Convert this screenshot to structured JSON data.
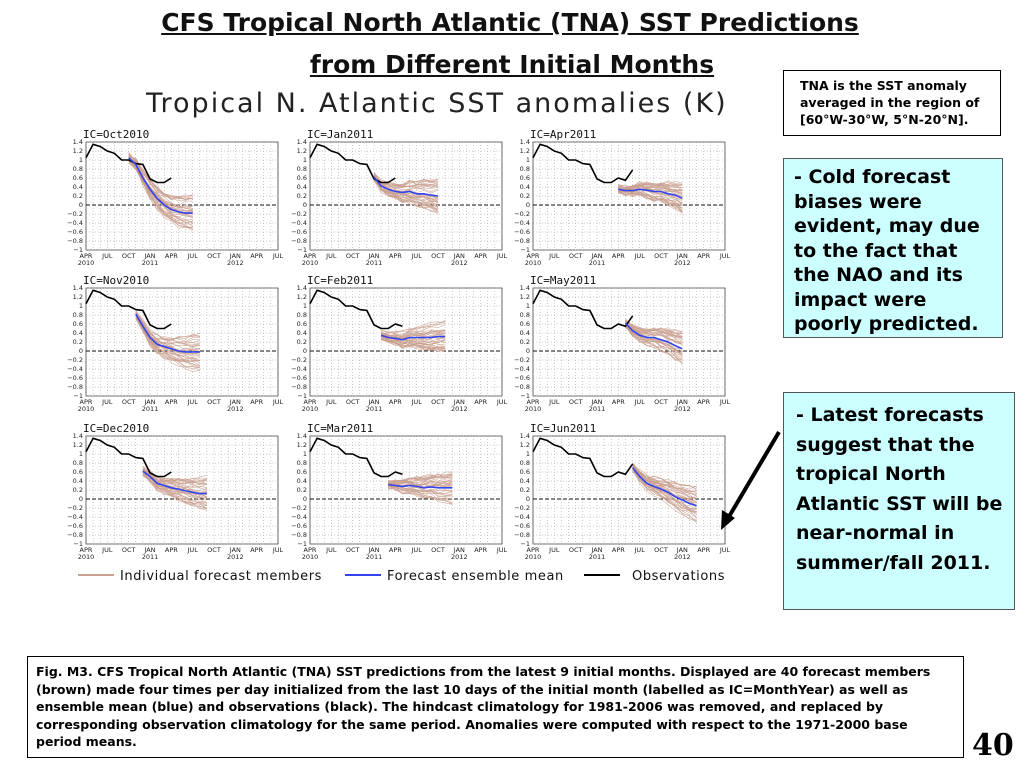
{
  "header": {
    "title_line1": "CFS Tropical North Atlantic (TNA) SST Predictions",
    "title_line2": "from Different Initial Months"
  },
  "callout": {
    "line1": "TNA is the SST anomaly",
    "line2": "averaged in the region of",
    "line3": "[60°W-30°W, 5°N-20°N]."
  },
  "notes": {
    "cold_bias": "- Cold forecast biases were evident, may due to the fact that the NAO and its impact were poorly predicted.",
    "latest": "- Latest forecasts suggest that the tropical North Atlantic SST will be near-normal in summer/fall 2011."
  },
  "caption": "Fig. M3. CFS Tropical North Atlantic (TNA) SST predictions from the latest 9 initial months. Displayed are 40 forecast members (brown) made four times per day initialized from the last 10 days of the initial month (labelled as IC=MonthYear) as well as ensemble mean (blue) and observations (black). The hindcast climatology for 1981-2006 was removed, and replaced by corresponding observation climatology for the same period. Anomalies were computed with respect to the 1971-2000 base period means.",
  "page_number": "40",
  "colors": {
    "members": "#c9a08f",
    "ensemble_mean": "#3344ee",
    "observations": "#000000",
    "note_bg": "#ccffff"
  },
  "chart_data": {
    "type": "line",
    "title": "Tropical N. Atlantic SST anomalies (K)",
    "ylim": [
      -1,
      1.4
    ],
    "yticks": [
      "1.4",
      "1.2",
      "1",
      "0.8",
      "0.6",
      "0.4",
      "0.2",
      "0",
      "−0.2",
      "−0.4",
      "−0.6",
      "−0.8",
      "−1"
    ],
    "xlim": [
      0,
      27
    ],
    "xtick_labels": [
      "APR",
      "JUL",
      "OCT",
      "JAN",
      "APR",
      "JUL",
      "OCT",
      "JAN",
      "APR",
      "JUL"
    ],
    "xtick_positions": [
      0,
      3,
      6,
      9,
      12,
      15,
      18,
      21,
      24,
      27
    ],
    "year_labels": [
      {
        "at": 0,
        "text": "2010"
      },
      {
        "at": 9,
        "text": "2011"
      },
      {
        "at": 21,
        "text": "2012"
      }
    ],
    "grid": true,
    "legend": {
      "placement": "bottom",
      "items": [
        "Individual forecast members",
        "Forecast ensemble mean",
        "Observations"
      ]
    },
    "observations": {
      "x": [
        0,
        1,
        2,
        3,
        4,
        5,
        6,
        7,
        8,
        9,
        10,
        11,
        12,
        13,
        14
      ],
      "y": [
        1.05,
        1.35,
        1.3,
        1.2,
        1.15,
        1.0,
        1.0,
        0.92,
        0.9,
        0.58,
        0.5,
        0.5,
        0.6,
        0.55,
        0.78
      ]
    },
    "panels": [
      {
        "ic": "IC=Oct2010",
        "obs_end": 12,
        "mean": {
          "x": [
            6,
            7,
            8,
            9,
            10,
            11,
            12,
            13,
            14,
            15
          ],
          "y": [
            1.05,
            0.9,
            0.6,
            0.35,
            0.15,
            0.0,
            -0.1,
            -0.15,
            -0.18,
            -0.18
          ]
        },
        "spread": 0.35
      },
      {
        "ic": "IC=Jan2011",
        "obs_end": 12,
        "mean": {
          "x": [
            9,
            10,
            11,
            12,
            13,
            14,
            15,
            16,
            17,
            18
          ],
          "y": [
            0.62,
            0.42,
            0.35,
            0.3,
            0.28,
            0.3,
            0.25,
            0.25,
            0.22,
            0.2
          ]
        },
        "spread": 0.3
      },
      {
        "ic": "IC=Apr2011",
        "obs_end": 14,
        "mean": {
          "x": [
            12,
            13,
            14,
            15,
            16,
            17,
            18,
            19,
            20,
            21
          ],
          "y": [
            0.35,
            0.32,
            0.32,
            0.35,
            0.33,
            0.3,
            0.3,
            0.25,
            0.22,
            0.15
          ]
        },
        "spread": 0.25
      },
      {
        "ic": "IC=Nov2010",
        "obs_end": 12,
        "mean": {
          "x": [
            7,
            8,
            9,
            10,
            11,
            12,
            13,
            14,
            15,
            16
          ],
          "y": [
            0.82,
            0.55,
            0.3,
            0.15,
            0.1,
            0.05,
            0.0,
            -0.02,
            -0.02,
            -0.02
          ]
        },
        "spread": 0.35
      },
      {
        "ic": "IC=Feb2011",
        "obs_end": 13,
        "mean": {
          "x": [
            10,
            11,
            12,
            13,
            14,
            15,
            16,
            17,
            18,
            19
          ],
          "y": [
            0.35,
            0.3,
            0.28,
            0.25,
            0.3,
            0.3,
            0.3,
            0.3,
            0.32,
            0.32
          ]
        },
        "spread": 0.3
      },
      {
        "ic": "IC=May2011",
        "obs_end": 14,
        "mean": {
          "x": [
            13,
            14,
            15,
            16,
            17,
            18,
            19,
            20,
            21
          ],
          "y": [
            0.62,
            0.45,
            0.35,
            0.3,
            0.3,
            0.25,
            0.2,
            0.12,
            0.05
          ]
        },
        "spread": 0.3
      },
      {
        "ic": "IC=Dec2010",
        "obs_end": 12,
        "mean": {
          "x": [
            8,
            9,
            10,
            11,
            12,
            13,
            14,
            15,
            16,
            17
          ],
          "y": [
            0.62,
            0.5,
            0.35,
            0.3,
            0.25,
            0.22,
            0.18,
            0.15,
            0.12,
            0.12
          ]
        },
        "spread": 0.3
      },
      {
        "ic": "IC=Mar2011",
        "obs_end": 13,
        "mean": {
          "x": [
            11,
            12,
            13,
            14,
            15,
            16,
            17,
            18,
            19,
            20
          ],
          "y": [
            0.32,
            0.3,
            0.28,
            0.3,
            0.28,
            0.25,
            0.27,
            0.25,
            0.25,
            0.25
          ]
        },
        "spread": 0.3
      },
      {
        "ic": "IC=Jun2011",
        "obs_end": 14,
        "mean": {
          "x": [
            14,
            15,
            16,
            17,
            18,
            19,
            20,
            21,
            22,
            23
          ],
          "y": [
            0.7,
            0.5,
            0.35,
            0.28,
            0.22,
            0.15,
            0.05,
            -0.02,
            -0.1,
            -0.15
          ]
        },
        "spread": 0.35
      }
    ]
  }
}
